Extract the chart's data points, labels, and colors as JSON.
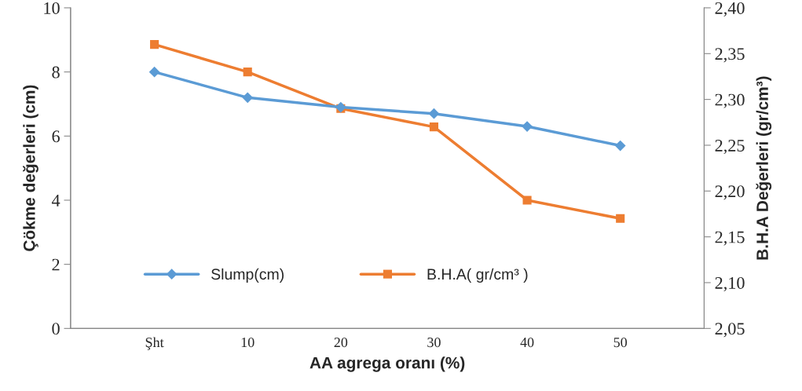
{
  "chart_data": {
    "type": "line",
    "xlabel": "AA agrega oranı (%)",
    "ylabel": "Çökme değerleri (cm)",
    "y2label": "B.H.A Değerleri (gr/cm³)",
    "categories": [
      "Şht",
      "10",
      "20",
      "30",
      "40",
      "50"
    ],
    "series": [
      {
        "name": "Slump(cm)",
        "color": "#5b9bd5",
        "marker": "diamond",
        "values": [
          8.0,
          7.2,
          6.9,
          6.7,
          6.3,
          5.7
        ]
      },
      {
        "name": "B.H.A( gr/cm³ )",
        "color": "#ed7d31",
        "marker": "square",
        "axis": "y2",
        "values": [
          2.36,
          2.33,
          2.29,
          2.27,
          2.19,
          2.17
        ]
      }
    ],
    "ylim": [
      0,
      10
    ],
    "yticks": [
      0,
      2,
      4,
      6,
      8,
      10
    ],
    "y2lim": [
      2.05,
      2.4
    ],
    "y2ticks": [
      {
        "value": 2.05,
        "label": "2,05"
      },
      {
        "value": 2.1,
        "label": "2,10"
      },
      {
        "value": 2.15,
        "label": "2,15"
      },
      {
        "value": 2.2,
        "label": "2,20"
      },
      {
        "value": 2.25,
        "label": "2,25"
      },
      {
        "value": 2.3,
        "label": "2,30"
      },
      {
        "value": 2.35,
        "label": "2,35"
      },
      {
        "value": 2.4,
        "label": "2,40"
      }
    ],
    "legend": "bottom",
    "grid": false,
    "line_style": "solid"
  }
}
